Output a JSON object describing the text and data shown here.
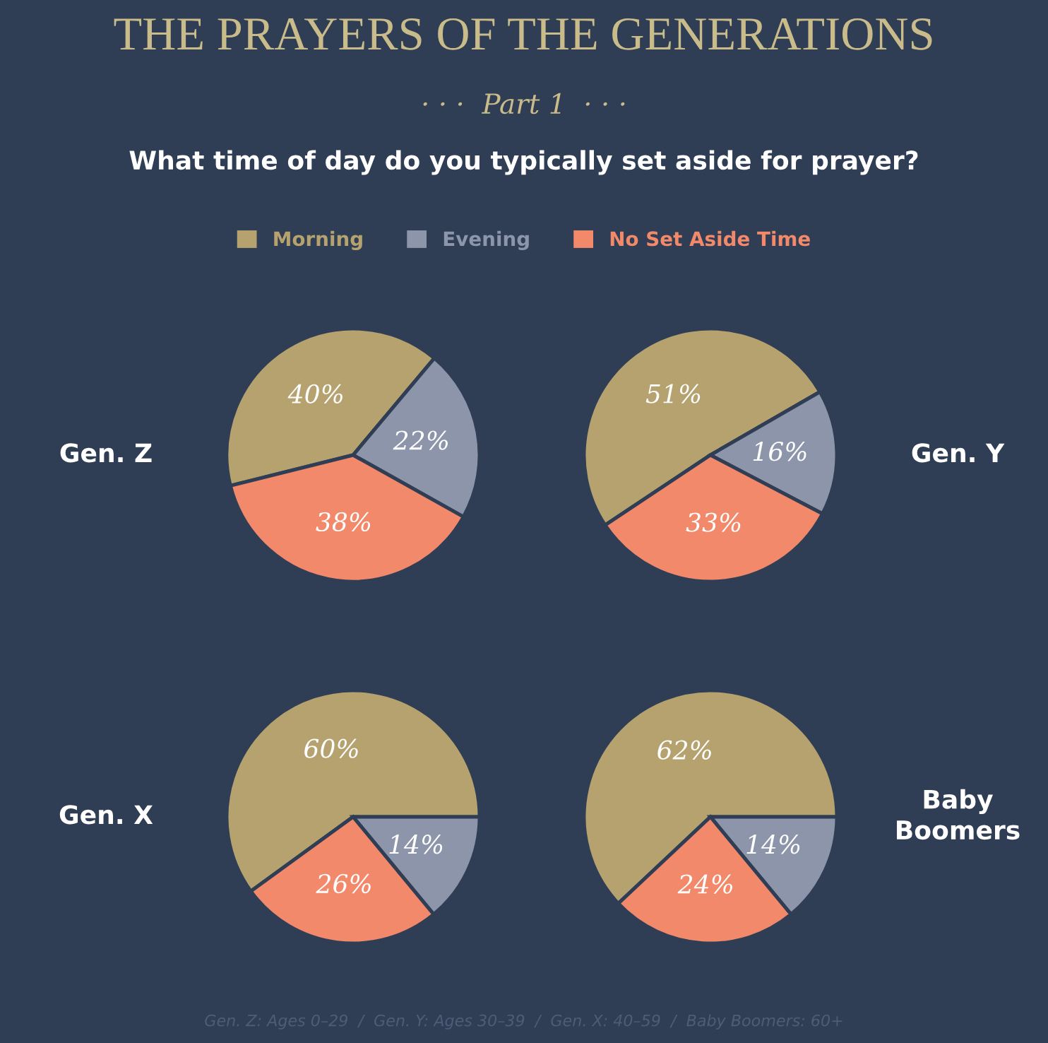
{
  "chart_data": [
    {
      "type": "other",
      "title": "THE PRAYERS OF THE GENERATIONS",
      "subtitle": "· · ·  Part 1  · · ·",
      "annotations": [
        "What time of day do you typically set aside for prayer?",
        "Gen. Z: Ages 0–29  /  Gen. Y: Ages 30–39  /  Gen. X: 40–59  /  Baby Boomers: 60+"
      ]
    },
    {
      "type": "pie",
      "title": "Gen. Z",
      "categories": [
        "Morning",
        "Evening",
        "No Set Aside Time"
      ],
      "values": [
        40,
        22,
        38
      ],
      "value_labels": [
        "40%",
        "22%",
        "38%"
      ],
      "colors": [
        "#b5a26e",
        "#8c95aa",
        "#f2896a"
      ],
      "legend": "top"
    },
    {
      "type": "pie",
      "title": "Gen. Y",
      "values": [
        51,
        16,
        33
      ],
      "value_labels": [
        "51%",
        "16%",
        "33%"
      ],
      "colors": [
        "#b5a26e",
        "#8c95aa",
        "#f2896a"
      ]
    },
    {
      "type": "pie",
      "title": "Gen. X",
      "values": [
        60,
        14,
        26
      ],
      "value_labels": [
        "60%",
        "14%",
        "26%"
      ],
      "colors": [
        "#b5a26e",
        "#8c95aa",
        "#f2896a"
      ]
    },
    {
      "type": "pie",
      "title": "Baby\nBoomers",
      "values": [
        62,
        14,
        24
      ],
      "value_labels": [
        "62%",
        "14%",
        "24%"
      ],
      "colors": [
        "#b5a26e",
        "#8c95aa",
        "#f2896a"
      ]
    }
  ]
}
